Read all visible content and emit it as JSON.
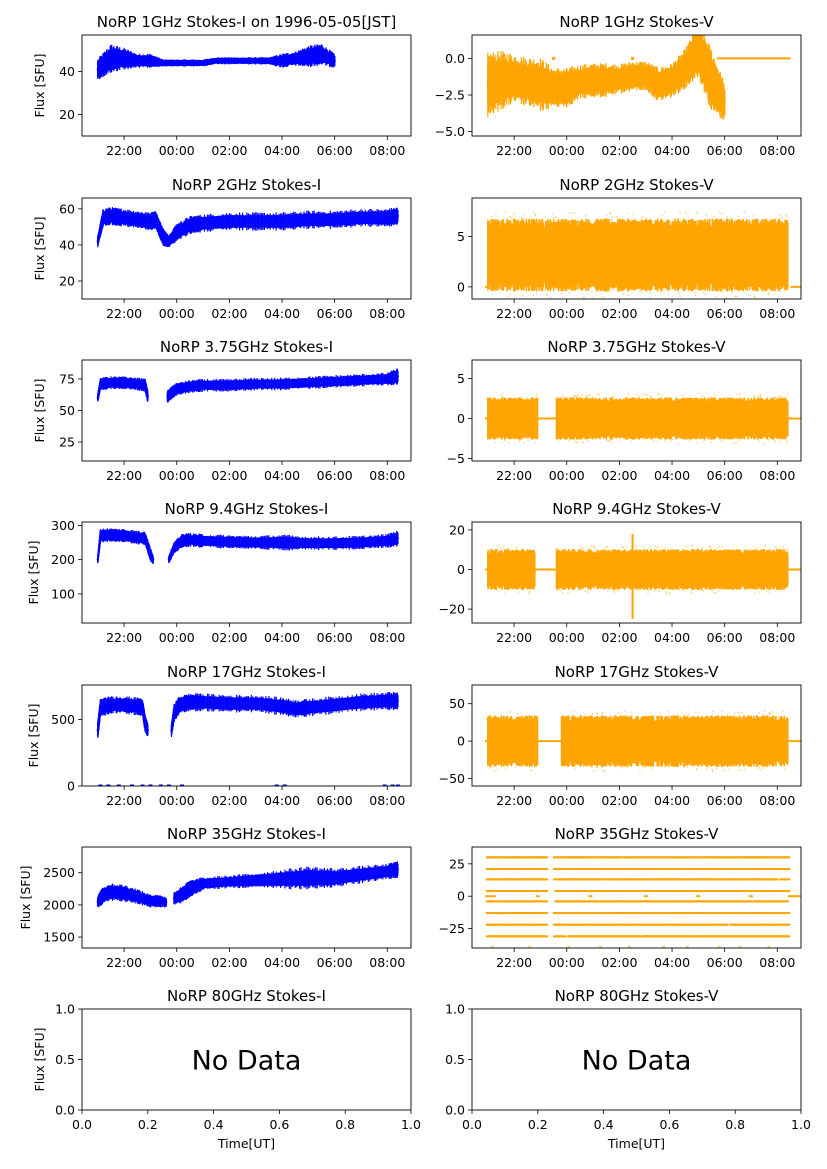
{
  "figure": {
    "series_colors": {
      "I": "#0000ff",
      "V": "#ffa500"
    },
    "time_ticks": [
      "22:00",
      "00:00",
      "02:00",
      "04:00",
      "06:00",
      "08:00"
    ],
    "xlabel": "Time[UT]",
    "ylabel": "Flux [SFU]",
    "no_data_text": "No Data",
    "frac_ticks": [
      "0.0",
      "0.2",
      "0.4",
      "0.6",
      "0.8",
      "1.0"
    ]
  },
  "chart_data": [
    {
      "id": "p1i",
      "type": "line",
      "title": "NoRP 1GHz Stokes-I on 1996-05-05[JST]",
      "ylabel": "Flux [SFU]",
      "color": "#0000ff",
      "xlim": [
        -3.6,
        8.9
      ],
      "ylim": [
        10,
        57
      ],
      "yticks": [
        20,
        40
      ],
      "ytick_labels": [
        "20",
        "40"
      ],
      "has_data": true,
      "time_range": [
        -3.0,
        6.0
      ],
      "x": [
        -3,
        -2.5,
        -2,
        -1.5,
        -1,
        -0.5,
        0,
        0.5,
        1,
        1.5,
        2,
        2.5,
        3,
        3.5,
        4,
        4.5,
        5,
        5.5,
        6
      ],
      "values": [
        41,
        46,
        46,
        45,
        45,
        44,
        44,
        44,
        44,
        45,
        45,
        45,
        45,
        45,
        45,
        46,
        47,
        48,
        45
      ],
      "spread": [
        3,
        4,
        3,
        2,
        2,
        1,
        1,
        1,
        1,
        1,
        1,
        1,
        1,
        1,
        2,
        2,
        3,
        3,
        2
      ]
    },
    {
      "id": "p1v",
      "type": "line",
      "title": "NoRP 1GHz Stokes-V",
      "ylabel": "",
      "color": "#ffa500",
      "xlim": [
        -3.6,
        8.9
      ],
      "ylim": [
        -5.3,
        1.6
      ],
      "yticks": [
        -5,
        -2.5,
        0
      ],
      "ytick_labels": [
        "−5.0",
        "−2.5",
        "0.0"
      ],
      "has_data": true,
      "time_range": [
        -3.0,
        6.0
      ],
      "x": [
        -3,
        -2.5,
        -2,
        -1.5,
        -1,
        -0.5,
        0,
        0.5,
        1,
        1.5,
        2,
        2.5,
        3,
        3.5,
        4,
        4.5,
        5,
        5.5,
        6
      ],
      "values": [
        -1.8,
        -1.5,
        -1.4,
        -1.6,
        -1.8,
        -2.0,
        -2.0,
        -1.6,
        -1.5,
        -1.5,
        -1.4,
        -1.2,
        -1.2,
        -1.8,
        -1.5,
        -0.7,
        0.6,
        -1.5,
        -3.0
      ],
      "spread": [
        1.3,
        1.2,
        1.0,
        1.0,
        1.1,
        0.8,
        0.8,
        0.7,
        0.7,
        0.7,
        0.6,
        0.6,
        0.6,
        0.7,
        0.7,
        0.8,
        1.1,
        1.3,
        0.8
      ],
      "zero_line_range": [
        5.7,
        8.5
      ],
      "zero_points": [
        -2.9,
        -0.5,
        2.5
      ]
    },
    {
      "id": "p2i",
      "type": "line",
      "title": "NoRP 2GHz Stokes-I",
      "ylabel": "Flux [SFU]",
      "color": "#0000ff",
      "xlim": [
        -3.6,
        8.9
      ],
      "ylim": [
        10,
        66
      ],
      "yticks": [
        20,
        40,
        60
      ],
      "ytick_labels": [
        "20",
        "40",
        "60"
      ],
      "has_data": true,
      "time_range": [
        -3.0,
        8.4
      ],
      "x": [
        -3,
        -2.8,
        -2.5,
        -2,
        -1.5,
        -1,
        -0.8,
        -0.6,
        -0.5,
        -0.3,
        0,
        0.5,
        1,
        2,
        3,
        4,
        5,
        6,
        7,
        8,
        8.4
      ],
      "values": [
        42,
        55,
        56,
        55,
        54,
        53,
        54,
        47,
        44,
        42,
        47,
        51,
        52,
        53,
        53,
        53,
        54,
        54,
        55,
        55,
        56
      ],
      "spread": [
        2,
        3,
        3,
        3,
        3,
        3,
        3,
        3,
        3,
        2,
        3,
        3,
        3,
        3,
        3,
        3,
        3,
        3,
        3,
        3,
        3
      ]
    },
    {
      "id": "p2v",
      "type": "scatter",
      "title": "NoRP 2GHz Stokes-V",
      "ylabel": "",
      "color": "#ffa500",
      "xlim": [
        -3.6,
        8.9
      ],
      "ylim": [
        -1.2,
        8.8
      ],
      "yticks": [
        0,
        5
      ],
      "ytick_labels": [
        "0",
        "5"
      ],
      "has_data": true,
      "time_range": [
        -3.0,
        8.4
      ],
      "band": [
        0,
        6.3
      ],
      "zero_line_range": [
        8.5,
        8.9
      ]
    },
    {
      "id": "p3i",
      "type": "line",
      "title": "NoRP 3.75GHz Stokes-I",
      "ylabel": "Flux [SFU]",
      "color": "#0000ff",
      "xlim": [
        -3.6,
        8.9
      ],
      "ylim": [
        10,
        90
      ],
      "yticks": [
        25,
        50,
        75
      ],
      "ytick_labels": [
        "25",
        "50",
        "75"
      ],
      "has_data": true,
      "time_range": [
        -3.0,
        8.4
      ],
      "x": [
        -3,
        -2.9,
        -2.5,
        -2,
        -1.5,
        -1.2,
        -1.1,
        null,
        -0.35,
        -0.2,
        0,
        0.5,
        1,
        2,
        3,
        4,
        5,
        6,
        7,
        8,
        8.4
      ],
      "values": [
        60,
        71,
        72,
        72,
        71,
        70,
        61,
        null,
        61,
        64,
        67,
        69,
        70,
        70,
        71,
        71,
        72,
        73,
        74,
        75,
        77
      ],
      "spread": [
        2,
        3,
        3,
        3,
        3,
        3,
        3,
        null,
        3,
        3,
        3,
        3,
        3,
        3,
        3,
        3,
        3,
        3,
        3,
        3,
        4
      ]
    },
    {
      "id": "p3v",
      "type": "scatter",
      "title": "NoRP 3.75GHz Stokes-V",
      "ylabel": "",
      "color": "#ffa500",
      "xlim": [
        -3.6,
        8.9
      ],
      "ylim": [
        -5.3,
        7.3
      ],
      "yticks": [
        -5,
        0,
        5
      ],
      "ytick_labels": [
        "−5",
        "0",
        "5"
      ],
      "has_data": true,
      "time_range": [
        -3.0,
        8.4
      ],
      "band": [
        -2.3,
        2.3
      ],
      "gaps": [
        [
          -1.1,
          -0.4
        ]
      ],
      "zero_line_range": [
        8.4,
        8.9
      ]
    },
    {
      "id": "p4i",
      "type": "line",
      "title": "NoRP 9.4GHz Stokes-I",
      "ylabel": "Flux [SFU]",
      "color": "#0000ff",
      "xlim": [
        -3.6,
        8.9
      ],
      "ylim": [
        15,
        310
      ],
      "yticks": [
        100,
        200,
        300
      ],
      "ytick_labels": [
        "100",
        "200",
        "300"
      ],
      "has_data": true,
      "time_range": [
        -3.0,
        8.4
      ],
      "x": [
        -3,
        -2.9,
        -2.5,
        -2,
        -1.5,
        -1.2,
        -1,
        -0.9,
        null,
        -0.3,
        -0.1,
        0.2,
        0.5,
        1,
        2,
        3,
        4,
        5,
        6,
        7,
        8,
        8.4
      ],
      "values": [
        200,
        270,
        272,
        270,
        265,
        262,
        215,
        200,
        null,
        200,
        235,
        255,
        258,
        255,
        252,
        250,
        250,
        248,
        248,
        250,
        255,
        262
      ],
      "spread": [
        8,
        12,
        12,
        12,
        12,
        12,
        12,
        8,
        null,
        8,
        10,
        12,
        12,
        12,
        12,
        12,
        14,
        12,
        12,
        12,
        12,
        14
      ]
    },
    {
      "id": "p4v",
      "type": "scatter",
      "title": "NoRP 9.4GHz Stokes-V",
      "ylabel": "",
      "color": "#ffa500",
      "xlim": [
        -3.6,
        8.9
      ],
      "ylim": [
        -27,
        24
      ],
      "yticks": [
        -20,
        0,
        20
      ],
      "ytick_labels": [
        "−20",
        "0",
        "20"
      ],
      "has_data": true,
      "time_range": [
        -3.0,
        8.4
      ],
      "band": [
        -9,
        9
      ],
      "gaps": [
        [
          -1.2,
          -0.4
        ]
      ],
      "spikes": [
        [
          2.5,
          -25,
          18
        ]
      ],
      "zero_line_range": [
        8.4,
        8.9
      ]
    },
    {
      "id": "p5i",
      "type": "line",
      "title": "NoRP 17GHz Stokes-I",
      "ylabel": "Flux [SFU]",
      "color": "#0000ff",
      "xlim": [
        -3.6,
        8.9
      ],
      "ylim": [
        0,
        760
      ],
      "yticks": [
        0,
        500
      ],
      "ytick_labels": [
        "0",
        "500"
      ],
      "has_data": true,
      "time_range": [
        -3.0,
        8.4
      ],
      "x": [
        -3,
        -2.9,
        -2.5,
        -2,
        -1.5,
        -1.3,
        -1.2,
        -1.1,
        null,
        -0.2,
        -0.1,
        0.1,
        0.5,
        1,
        2,
        3,
        4,
        4.5,
        5,
        6,
        7,
        8,
        8.4
      ],
      "values": [
        420,
        590,
        610,
        610,
        600,
        590,
        470,
        420,
        null,
        420,
        550,
        610,
        630,
        630,
        620,
        620,
        600,
        580,
        590,
        610,
        630,
        640,
        640
      ],
      "spread": [
        40,
        40,
        40,
        40,
        40,
        40,
        40,
        30,
        null,
        30,
        40,
        40,
        40,
        40,
        40,
        40,
        40,
        40,
        40,
        40,
        40,
        40,
        40
      ],
      "bottom_dots": true
    },
    {
      "id": "p5v",
      "type": "scatter",
      "title": "NoRP 17GHz Stokes-V",
      "ylabel": "",
      "color": "#ffa500",
      "xlim": [
        -3.6,
        8.9
      ],
      "ylim": [
        -60,
        75
      ],
      "yticks": [
        -50,
        0,
        50
      ],
      "ytick_labels": [
        "−50",
        "0",
        "50"
      ],
      "has_data": true,
      "time_range": [
        -3.0,
        8.4
      ],
      "band": [
        -30,
        30
      ],
      "gaps": [
        [
          -1.1,
          -0.2
        ]
      ],
      "zero_line_range": [
        8.4,
        8.9
      ]
    },
    {
      "id": "p6i",
      "type": "line",
      "title": "NoRP 35GHz Stokes-I",
      "ylabel": "Flux [SFU]",
      "color": "#0000ff",
      "xlim": [
        -3.6,
        8.9
      ],
      "ylim": [
        1330,
        2900
      ],
      "yticks": [
        1500,
        2000,
        2500
      ],
      "ytick_labels": [
        "1500",
        "2000",
        "2500"
      ],
      "has_data": true,
      "time_range": [
        -3.0,
        8.4
      ],
      "x": [
        -3,
        -2.8,
        -2.5,
        -2,
        -1.5,
        -1,
        -0.7,
        -0.4,
        null,
        -0.1,
        0.2,
        0.5,
        1,
        2,
        3,
        4,
        5,
        6,
        7,
        8,
        8.4
      ],
      "values": [
        2050,
        2150,
        2200,
        2180,
        2130,
        2060,
        2060,
        2040,
        null,
        2100,
        2160,
        2250,
        2330,
        2360,
        2380,
        2400,
        2420,
        2420,
        2470,
        2520,
        2550
      ],
      "spread": [
        60,
        80,
        80,
        80,
        70,
        60,
        60,
        50,
        null,
        60,
        80,
        80,
        60,
        60,
        70,
        90,
        110,
        90,
        80,
        70,
        80
      ]
    },
    {
      "id": "p6v",
      "type": "scatter",
      "title": "NoRP 35GHz Stokes-V",
      "ylabel": "",
      "color": "#ffa500",
      "xlim": [
        -3.6,
        8.9
      ],
      "ylim": [
        -40,
        38
      ],
      "yticks": [
        -25,
        0,
        25
      ],
      "ytick_labels": [
        "−25",
        "0",
        "25"
      ],
      "has_data": true,
      "time_range": [
        -3.0,
        8.4
      ],
      "levels": [
        -31,
        -22,
        -13,
        -4,
        4,
        13,
        21,
        30
      ],
      "gaps": [
        [
          -0.8,
          -0.5
        ]
      ],
      "zero_line_range": [
        8.4,
        8.9
      ]
    },
    {
      "id": "p7i",
      "type": "empty",
      "title": "NoRP 80GHz Stokes-I",
      "ylabel": "Flux [SFU]",
      "xlabel": "Time[UT]",
      "color": "#0000ff",
      "xlim": [
        0,
        1
      ],
      "ylim": [
        0,
        1
      ],
      "yticks": [
        0,
        0.5,
        1
      ],
      "ytick_labels": [
        "0.0",
        "0.5",
        "1.0"
      ],
      "has_data": false
    },
    {
      "id": "p7v",
      "type": "empty",
      "title": "NoRP 80GHz Stokes-V",
      "ylabel": "",
      "xlabel": "Time[UT]",
      "color": "#ffa500",
      "xlim": [
        0,
        1
      ],
      "ylim": [
        0,
        1
      ],
      "yticks": [
        0,
        0.5,
        1
      ],
      "ytick_labels": [
        "0.0",
        "0.5",
        "1.0"
      ],
      "has_data": false
    }
  ]
}
